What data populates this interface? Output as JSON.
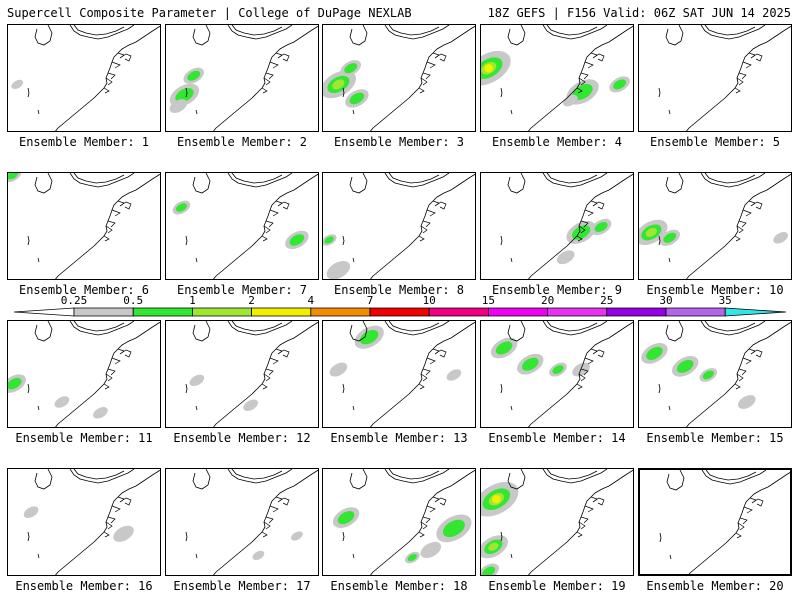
{
  "header": {
    "left": "Supercell Composite Parameter | College of DuPage NEXLAB",
    "right": "18Z GEFS | F156 Valid: 06Z SAT JUN 14 2025"
  },
  "member_label_prefix": "Ensemble Member:",
  "members": [
    {
      "id": "1",
      "selected": false,
      "blobs": [
        {
          "u": 0.06,
          "v": 0.55,
          "s": 0.4,
          "lvl": 1
        }
      ]
    },
    {
      "id": "2",
      "selected": false,
      "blobs": [
        {
          "u": 0.12,
          "v": 0.65,
          "s": 1.0,
          "lvl": 2
        },
        {
          "u": 0.18,
          "v": 0.47,
          "s": 0.7,
          "lvl": 2
        },
        {
          "u": 0.08,
          "v": 0.75,
          "s": 0.6,
          "lvl": 1
        }
      ]
    },
    {
      "id": "3",
      "selected": false,
      "blobs": [
        {
          "u": 0.1,
          "v": 0.55,
          "s": 1.2,
          "lvl": 3
        },
        {
          "u": 0.18,
          "v": 0.4,
          "s": 0.7,
          "lvl": 2
        },
        {
          "u": 0.22,
          "v": 0.68,
          "s": 0.8,
          "lvl": 2
        }
      ]
    },
    {
      "id": "4",
      "selected": false,
      "blobs": [
        {
          "u": 0.05,
          "v": 0.4,
          "s": 1.5,
          "lvl": 4
        },
        {
          "u": 0.66,
          "v": 0.62,
          "s": 1.1,
          "lvl": 2
        },
        {
          "u": 0.9,
          "v": 0.55,
          "s": 0.7,
          "lvl": 2
        },
        {
          "u": 0.58,
          "v": 0.7,
          "s": 0.5,
          "lvl": 1
        }
      ]
    },
    {
      "id": "5",
      "selected": false,
      "blobs": []
    },
    {
      "id": "6",
      "selected": false,
      "blobs": [
        {
          "u": 0.03,
          "v": 0.02,
          "s": 0.6,
          "lvl": 2
        }
      ]
    },
    {
      "id": "7",
      "selected": false,
      "blobs": [
        {
          "u": 0.1,
          "v": 0.32,
          "s": 0.6,
          "lvl": 2
        },
        {
          "u": 0.85,
          "v": 0.62,
          "s": 0.8,
          "lvl": 2
        }
      ]
    },
    {
      "id": "8",
      "selected": false,
      "blobs": [
        {
          "u": 0.04,
          "v": 0.62,
          "s": 0.5,
          "lvl": 2
        },
        {
          "u": 0.1,
          "v": 0.9,
          "s": 0.8,
          "lvl": 1
        }
      ]
    },
    {
      "id": "9",
      "selected": false,
      "blobs": [
        {
          "u": 0.65,
          "v": 0.55,
          "s": 1.0,
          "lvl": 2
        },
        {
          "u": 0.78,
          "v": 0.5,
          "s": 0.7,
          "lvl": 2
        },
        {
          "u": 0.55,
          "v": 0.78,
          "s": 0.6,
          "lvl": 1
        }
      ]
    },
    {
      "id": "10",
      "selected": false,
      "blobs": [
        {
          "u": 0.08,
          "v": 0.55,
          "s": 1.1,
          "lvl": 3
        },
        {
          "u": 0.2,
          "v": 0.6,
          "s": 0.7,
          "lvl": 2
        },
        {
          "u": 0.92,
          "v": 0.6,
          "s": 0.5,
          "lvl": 1
        }
      ]
    },
    {
      "id": "11",
      "selected": false,
      "blobs": [
        {
          "u": 0.04,
          "v": 0.58,
          "s": 0.8,
          "lvl": 2
        },
        {
          "u": 0.35,
          "v": 0.75,
          "s": 0.5,
          "lvl": 1
        },
        {
          "u": 0.6,
          "v": 0.85,
          "s": 0.5,
          "lvl": 1
        }
      ]
    },
    {
      "id": "12",
      "selected": false,
      "blobs": [
        {
          "u": 0.2,
          "v": 0.55,
          "s": 0.5,
          "lvl": 1
        },
        {
          "u": 0.55,
          "v": 0.78,
          "s": 0.5,
          "lvl": 1
        }
      ]
    },
    {
      "id": "13",
      "selected": false,
      "blobs": [
        {
          "u": 0.3,
          "v": 0.15,
          "s": 1.0,
          "lvl": 2
        },
        {
          "u": 0.1,
          "v": 0.45,
          "s": 0.6,
          "lvl": 1
        },
        {
          "u": 0.85,
          "v": 0.5,
          "s": 0.5,
          "lvl": 1
        }
      ]
    },
    {
      "id": "14",
      "selected": false,
      "blobs": [
        {
          "u": 0.15,
          "v": 0.25,
          "s": 0.9,
          "lvl": 2
        },
        {
          "u": 0.32,
          "v": 0.4,
          "s": 0.9,
          "lvl": 2
        },
        {
          "u": 0.5,
          "v": 0.45,
          "s": 0.6,
          "lvl": 2
        },
        {
          "u": 0.65,
          "v": 0.45,
          "s": 0.6,
          "lvl": 1
        }
      ]
    },
    {
      "id": "15",
      "selected": false,
      "blobs": [
        {
          "u": 0.1,
          "v": 0.3,
          "s": 0.9,
          "lvl": 2
        },
        {
          "u": 0.3,
          "v": 0.42,
          "s": 0.9,
          "lvl": 2
        },
        {
          "u": 0.45,
          "v": 0.5,
          "s": 0.6,
          "lvl": 2
        },
        {
          "u": 0.7,
          "v": 0.75,
          "s": 0.6,
          "lvl": 1
        }
      ]
    },
    {
      "id": "16",
      "selected": false,
      "blobs": [
        {
          "u": 0.15,
          "v": 0.4,
          "s": 0.5,
          "lvl": 1
        },
        {
          "u": 0.75,
          "v": 0.6,
          "s": 0.7,
          "lvl": 1
        }
      ]
    },
    {
      "id": "17",
      "selected": false,
      "blobs": [
        {
          "u": 0.85,
          "v": 0.62,
          "s": 0.4,
          "lvl": 1
        },
        {
          "u": 0.6,
          "v": 0.8,
          "s": 0.4,
          "lvl": 1
        }
      ]
    },
    {
      "id": "18",
      "selected": false,
      "blobs": [
        {
          "u": 0.15,
          "v": 0.45,
          "s": 0.9,
          "lvl": 2
        },
        {
          "u": 0.85,
          "v": 0.55,
          "s": 1.2,
          "lvl": 2
        },
        {
          "u": 0.58,
          "v": 0.82,
          "s": 0.5,
          "lvl": 2
        },
        {
          "u": 0.7,
          "v": 0.75,
          "s": 0.7,
          "lvl": 1
        }
      ]
    },
    {
      "id": "19",
      "selected": false,
      "blobs": [
        {
          "u": 0.1,
          "v": 0.28,
          "s": 1.5,
          "lvl": 4
        },
        {
          "u": 0.08,
          "v": 0.72,
          "s": 1.0,
          "lvl": 3
        },
        {
          "u": 0.05,
          "v": 0.95,
          "s": 0.7,
          "lvl": 2
        }
      ]
    },
    {
      "id": "20",
      "selected": true,
      "blobs": []
    }
  ],
  "colorbar": {
    "labels": [
      "0.25",
      "0.5",
      "1",
      "2",
      "4",
      "7",
      "10",
      "15",
      "20",
      "25",
      "30",
      "35"
    ],
    "colors": [
      "#ffffff",
      "#c8c8c8",
      "#32e632",
      "#a0e632",
      "#f0f000",
      "#f08c00",
      "#f00000",
      "#f00080",
      "#f000f0",
      "#e632f0",
      "#9600e6",
      "#b464e6",
      "#32e6e6"
    ]
  }
}
